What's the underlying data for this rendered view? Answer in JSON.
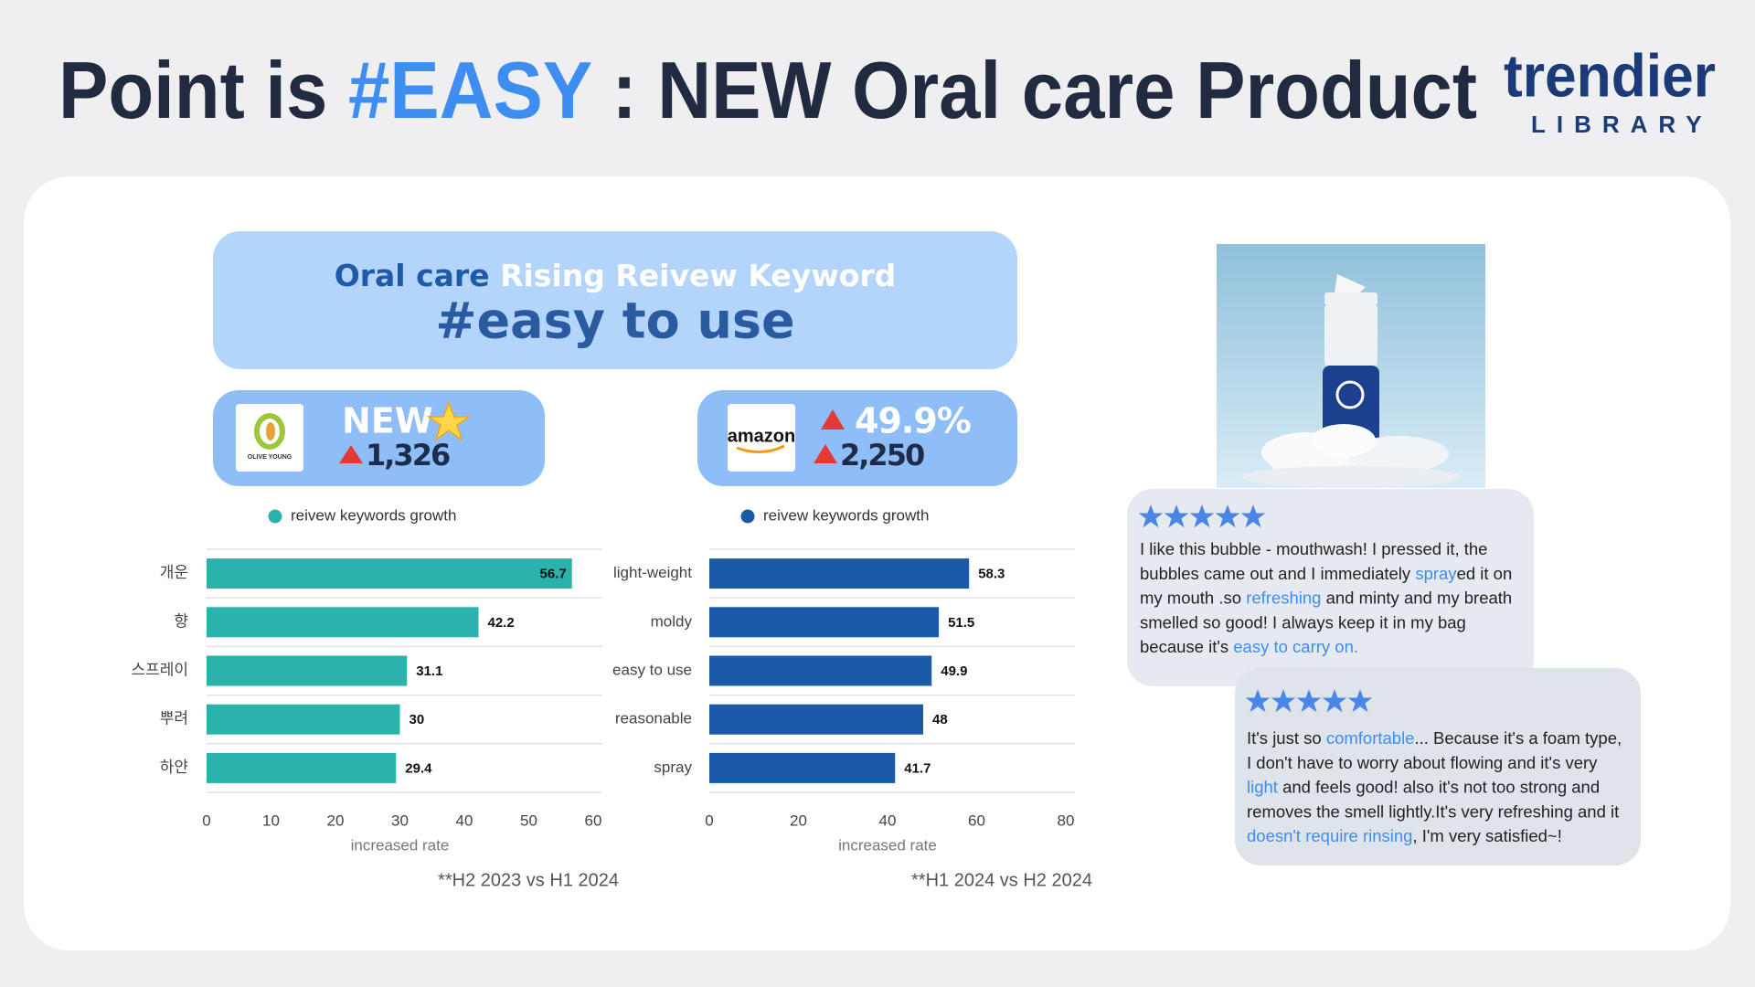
{
  "header": {
    "title_pre": "Point is",
    "title_highlight": "#EASY",
    "title_post": ": NEW Oral care Product",
    "logo_main": "trendier",
    "logo_sub": "LIBRARY"
  },
  "banner": {
    "line1_a": "Oral care",
    "line1_b": "Rising Reivew Keyword",
    "line2": "#easy to use"
  },
  "badges": [
    {
      "logo": "OLIVE YOUNG",
      "headline": "NEW",
      "count": "1,326"
    },
    {
      "logo": "amazon",
      "headline": "49.9%",
      "count": "2,250"
    }
  ],
  "chart_data": [
    {
      "type": "bar",
      "orientation": "horizontal",
      "categories": [
        "개운",
        "향",
        "스프레이",
        "뿌려",
        "하얀"
      ],
      "series": [
        {
          "name": "reivew keywords growth",
          "color": "#2ab3ad",
          "values": [
            56.7,
            42.2,
            31.1,
            30,
            29.4
          ]
        }
      ],
      "xlim": [
        0,
        60
      ],
      "xticks": [
        0,
        10,
        20,
        30,
        40,
        50,
        60
      ],
      "xlabel": "increased rate",
      "legend": "top",
      "note": "**H2 2023 vs H1 2024"
    },
    {
      "type": "bar",
      "orientation": "horizontal",
      "categories": [
        "light-weight",
        "moldy",
        "easy to use",
        "reasonable",
        "spray"
      ],
      "series": [
        {
          "name": "reivew keywords growth",
          "color": "#1a5aa8",
          "values": [
            58.3,
            51.5,
            49.9,
            48,
            41.7
          ]
        }
      ],
      "xlim": [
        0,
        80
      ],
      "xticks": [
        0,
        20,
        40,
        60,
        80
      ],
      "xlabel": "increased rate",
      "legend": "top",
      "note": "**H1 2024 vs H2 2024"
    }
  ],
  "reviews": [
    {
      "lines": [
        [
          {
            "text": "I like this bubble - mouthwash! I pressed it, the",
            "highlight": false
          }
        ],
        [
          {
            "text": "bubbles came out and I immediately ",
            "highlight": false
          },
          {
            "text": "spray",
            "highlight": true
          },
          {
            "text": "ed it on",
            "highlight": false
          }
        ],
        [
          {
            "text": "my mouth .so ",
            "highlight": false
          },
          {
            "text": "refreshing",
            "highlight": true
          },
          {
            "text": " and minty and my breath",
            "highlight": false
          }
        ],
        [
          {
            "text": "smelled so good! I always keep it in my bag",
            "highlight": false
          }
        ],
        [
          {
            "text": "because it's ",
            "highlight": false
          },
          {
            "text": "easy to carry on.",
            "highlight": true
          }
        ]
      ]
    },
    {
      "lines": [
        [
          {
            "text": "It's just so ",
            "highlight": false
          },
          {
            "text": "comfortable",
            "highlight": true
          },
          {
            "text": "... Because it's a foam type,",
            "highlight": false
          }
        ],
        [
          {
            "text": "I don't have to worry about flowing and it's very",
            "highlight": false
          }
        ],
        [
          {
            "text": "light",
            "highlight": true
          },
          {
            "text": " and feels good! also it's not too strong and",
            "highlight": false
          }
        ],
        [
          {
            "text": "removes the smell lightly.It's very refreshing and it",
            "highlight": false
          }
        ],
        [
          {
            "text": "doesn't require rinsing",
            "highlight": true
          },
          {
            "text": ", I'm very satisfied~!",
            "highlight": false
          }
        ]
      ]
    }
  ]
}
